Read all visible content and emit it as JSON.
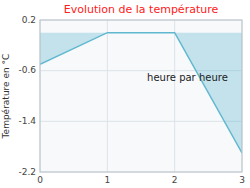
{
  "chart_data": {
    "type": "area",
    "title": "Evolution de la température",
    "title_color": "#ff2020",
    "xlabel": "heure par heure",
    "ylabel": "Température en °C",
    "x": [
      0,
      1,
      2,
      3
    ],
    "values": [
      -0.5,
      0.0,
      0.0,
      -1.9
    ],
    "color": "#60b8d0",
    "xlim": [
      0,
      3
    ],
    "ylim": [
      -2.2,
      0.2
    ],
    "xticks": [
      0,
      1,
      2,
      3
    ],
    "yticks": [
      0.2,
      -0.6,
      -1.4,
      -2.2
    ],
    "grid": true
  }
}
